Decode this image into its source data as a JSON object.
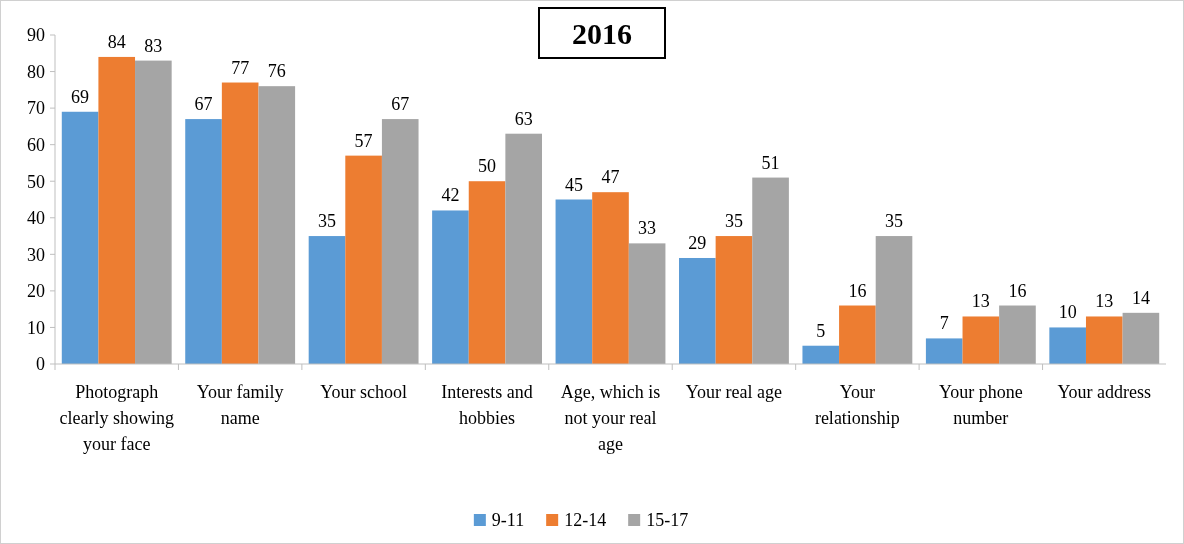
{
  "chart_data": {
    "type": "bar",
    "title": "2016",
    "categories": [
      "Photograph clearly showing your face",
      "Your family name",
      "Your school",
      "Interests and hobbies",
      "Age, which is not your real age",
      "Your real age",
      "Your relationship",
      "Your phone number",
      "Your address"
    ],
    "series": [
      {
        "name": "9-11",
        "color": "#5b9bd5",
        "values": [
          69,
          67,
          35,
          42,
          45,
          29,
          5,
          7,
          10
        ]
      },
      {
        "name": "12-14",
        "color": "#ed7d31",
        "values": [
          84,
          77,
          57,
          50,
          47,
          35,
          16,
          13,
          13
        ]
      },
      {
        "name": "15-17",
        "color": "#a5a5a5",
        "values": [
          83,
          76,
          67,
          63,
          33,
          51,
          35,
          16,
          14
        ]
      }
    ],
    "ylim": [
      0,
      90
    ],
    "yticks": [
      0,
      10,
      20,
      30,
      40,
      50,
      60,
      70,
      80,
      90
    ],
    "grid": false,
    "legend": "bottom",
    "data_labels": true
  }
}
